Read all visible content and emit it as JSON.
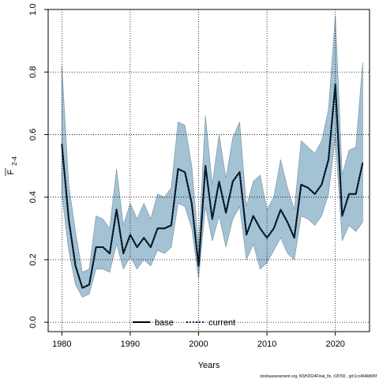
{
  "chart_data": {
    "type": "area",
    "xlabel": "Years",
    "ylabel_main": "F",
    "ylabel_sub": "2-4",
    "xlim": [
      1978,
      2025
    ],
    "ylim": [
      -0.03,
      1.0
    ],
    "xticks": [
      1980,
      1990,
      2000,
      2010,
      2020
    ],
    "yticks": [
      0.0,
      0.2,
      0.4,
      0.6,
      0.8,
      1.0
    ],
    "xtick_labels": [
      "1980",
      "1990",
      "2000",
      "2010",
      "2020"
    ],
    "ytick_labels": [
      "0.0",
      "0.2",
      "0.4",
      "0.6",
      "0.8",
      "1.0"
    ],
    "grid": true,
    "legend_position": "bottom-center",
    "band_color": "#a3c2d3",
    "band_edge_color": "#7f98a8",
    "line_color": "#0b2e52",
    "x": [
      1980,
      1981,
      1982,
      1983,
      1984,
      1985,
      1986,
      1987,
      1988,
      1989,
      1990,
      1991,
      1992,
      1993,
      1994,
      1995,
      1996,
      1997,
      1998,
      1999,
      2000,
      2001,
      2002,
      2003,
      2004,
      2005,
      2006,
      2007,
      2008,
      2009,
      2010,
      2011,
      2012,
      2013,
      2014,
      2015,
      2016,
      2017,
      2018,
      2019,
      2020,
      2021,
      2022,
      2023,
      2024
    ],
    "series": [
      {
        "name": "base",
        "style": "solid",
        "values": [
          0.57,
          0.33,
          0.18,
          0.11,
          0.12,
          0.24,
          0.24,
          0.22,
          0.36,
          0.22,
          0.28,
          0.24,
          0.27,
          0.24,
          0.3,
          0.3,
          0.31,
          0.49,
          0.48,
          0.38,
          0.18,
          0.5,
          0.33,
          0.45,
          0.35,
          0.45,
          0.48,
          0.28,
          0.34,
          0.3,
          0.27,
          0.3,
          0.36,
          0.32,
          0.27,
          0.44,
          0.43,
          0.41,
          0.44,
          0.52,
          0.76,
          0.34,
          0.41,
          0.41,
          0.51
        ]
      },
      {
        "name": "current",
        "style": "dotted",
        "values": [
          0.57,
          0.33,
          0.18,
          0.11,
          0.12,
          0.24,
          0.24,
          0.22,
          0.36,
          0.22,
          0.28,
          0.24,
          0.27,
          0.24,
          0.3,
          0.3,
          0.31,
          0.49,
          0.48,
          0.38,
          0.18,
          0.5,
          0.33,
          0.45,
          0.35,
          0.45,
          0.48,
          0.28,
          0.34,
          0.3,
          0.27,
          0.3,
          0.36,
          0.32,
          0.27,
          0.44,
          0.43,
          0.41,
          0.44,
          0.52,
          0.76,
          0.34,
          0.41,
          0.41,
          0.51
        ]
      }
    ],
    "band": {
      "upper": [
        0.82,
        0.44,
        0.29,
        0.16,
        0.17,
        0.34,
        0.33,
        0.3,
        0.49,
        0.31,
        0.38,
        0.33,
        0.38,
        0.33,
        0.41,
        0.4,
        0.43,
        0.64,
        0.63,
        0.5,
        0.24,
        0.66,
        0.44,
        0.6,
        0.46,
        0.59,
        0.64,
        0.37,
        0.45,
        0.47,
        0.36,
        0.4,
        0.52,
        0.43,
        0.36,
        0.58,
        0.56,
        0.54,
        0.58,
        0.68,
        0.98,
        0.47,
        0.55,
        0.56,
        0.83
      ],
      "lower": [
        0.41,
        0.23,
        0.12,
        0.08,
        0.09,
        0.17,
        0.17,
        0.16,
        0.25,
        0.17,
        0.21,
        0.17,
        0.2,
        0.18,
        0.23,
        0.22,
        0.24,
        0.38,
        0.37,
        0.3,
        0.14,
        0.37,
        0.26,
        0.34,
        0.24,
        0.33,
        0.37,
        0.2,
        0.25,
        0.17,
        0.19,
        0.23,
        0.27,
        0.22,
        0.2,
        0.34,
        0.33,
        0.31,
        0.34,
        0.41,
        0.59,
        0.26,
        0.31,
        0.29,
        0.32
      ]
    }
  },
  "footnote": "stockassessment.org, NSH2024Final_fix, r18765 , git:1cc464b806f"
}
